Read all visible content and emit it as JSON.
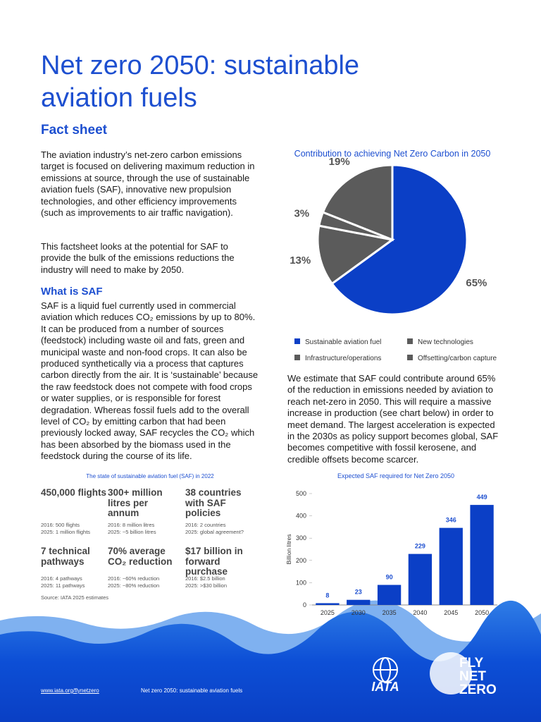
{
  "header": {
    "title": "Net zero 2050: sustainable aviation fuels",
    "subtitle": "Fact sheet"
  },
  "intro": [
    "The aviation industry’s net-zero carbon emissions target is focused on delivering maximum reduction in emissions at source, through the use of sustainable aviation fuels (SAF), innovative new propulsion technologies, and other efficiency improvements (such as improvements to air traffic navigation).",
    "This factsheet looks at the potential for SAF to provide the bulk of the emissions reductions the industry will need to make by 2050."
  ],
  "what_is_saf": {
    "heading": "What is SAF",
    "text": "SAF is a liquid fuel currently used in commercial aviation which reduces CO₂ emissions by up to 80%. It can be produced from a number of sources (feedstock) including waste oil and fats, green and municipal waste and non-food crops.  It can also be produced synthetically via a process that captures carbon directly from the air. It is ‘sustainable’ because the raw feedstock does not compete with food crops or water supplies, or is responsible for forest degradation. Whereas fossil fuels add to the overall level of CO₂ by emitting carbon that had been previously locked away, SAF recycles the CO₂ which has been absorbed by the biomass used in the feedstock during the course of its life."
  },
  "estimate_text": "We estimate that SAF could contribute around 65% of the reduction in emissions needed by aviation to reach net-zero in 2050. This will require a massive increase in production (see chart below) in order to meet demand. The largest acceleration is expected in the 2030s as policy support becomes global, SAF becomes competitive with fossil kerosene, and credible offsets become scarcer.",
  "stats": {
    "title": "The state of sustainable aviation fuel (SAF) in 2022",
    "items": [
      {
        "headline": "450,000 flights",
        "details": [
          "2016: 500 flights",
          "2025: 1 million flights"
        ]
      },
      {
        "headline": "300+ million litres per annum",
        "details": [
          "2016: 8 million litres",
          "2025: ~5 billion litres"
        ]
      },
      {
        "headline": "38 countries with SAF policies",
        "details": [
          "2016: 2 countries",
          "2025: global agreement?"
        ]
      },
      {
        "headline": "7 technical pathways",
        "details": [
          "2016: 4 pathways",
          "2025: 11 pathways"
        ]
      },
      {
        "headline": "70% average CO₂ reduction",
        "details": [
          "2016: ~60% reduction",
          "2025: ~80% reduction"
        ]
      },
      {
        "headline": "$17 billion in forward purchase",
        "details": [
          "2016: $2.5 billion",
          "2025: >$30 billion"
        ]
      }
    ],
    "source": "Source: IATA 2025 estimates"
  },
  "footer": {
    "link": "www.iata.org/flynetzero",
    "text": "Net zero 2050: sustainable aviation fuels",
    "logo_iata": "IATA",
    "logo_fly": [
      "FLY",
      "NET",
      "ZERO"
    ]
  },
  "chart_data": [
    {
      "type": "pie",
      "title": "Contribution to achieving Net Zero Carbon in 2050",
      "categories": [
        "Sustainable aviation fuel",
        "Infrastructure/operations",
        "New technologies",
        "Offsetting/carbon capture"
      ],
      "values": [
        65,
        13,
        3,
        19
      ],
      "value_labels": [
        "65%",
        "13%",
        "3%",
        "19%"
      ],
      "colors": [
        "#0b3fc6",
        "#5b5b5b",
        "#5b5b5b",
        "#5b5b5b"
      ]
    },
    {
      "type": "bar",
      "title": "Expected SAF required for Net Zero 2050",
      "categories": [
        "2025",
        "2030",
        "2035",
        "2040",
        "2045",
        "2050"
      ],
      "values": [
        8,
        23,
        90,
        229,
        346,
        449
      ],
      "color": "#0b3fc6",
      "ylabel": "Billion litres",
      "ylim": [
        0,
        500
      ],
      "yticks": [
        0,
        100,
        200,
        300,
        400,
        500
      ]
    }
  ]
}
